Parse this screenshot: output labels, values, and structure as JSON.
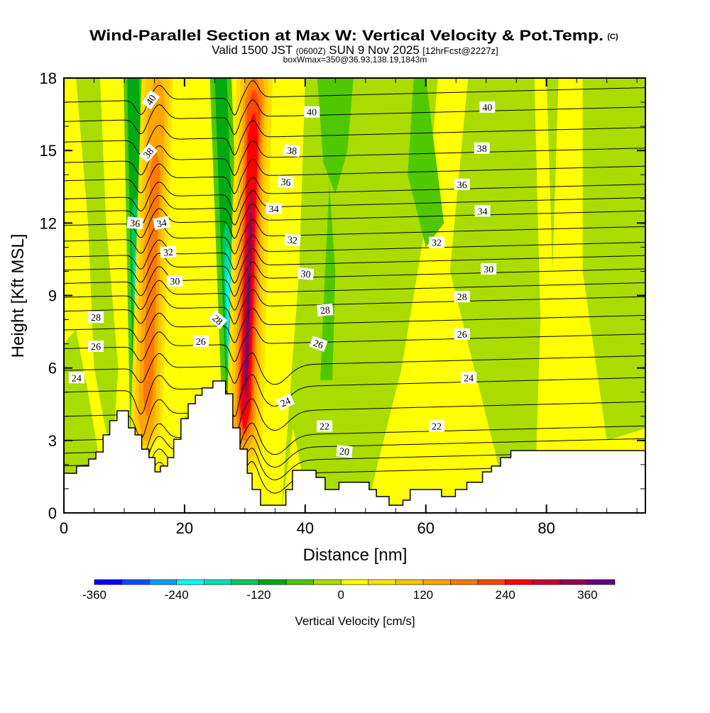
{
  "chart_data": {
    "type": "heatmap",
    "title": "Wind-Parallel Section at Max W: Vertical Velocity & Pot.Temp.",
    "copyright": "(C)",
    "subtitle": {
      "valid": "Valid 1500 JST",
      "utc": "(0600Z)",
      "date": "SUN 9 Nov 2025",
      "forecast": "[12hrFcst@2227z]"
    },
    "box_info": "boxWmax=350@36.93,138.19,1843m",
    "xlabel": "Distance [nm]",
    "ylabel": "Height [Kft MSL]",
    "xlim": [
      0,
      96.4
    ],
    "ylim": [
      0,
      18
    ],
    "xticks": [
      "0",
      "20",
      "40",
      "60",
      "80"
    ],
    "yticks": [
      "0",
      "3",
      "6",
      "9",
      "12",
      "15",
      "18"
    ],
    "colorbar": {
      "label": "Vertical Velocity [cm/s]",
      "ticks": [
        "-360",
        "-240",
        "-120",
        "0",
        "120",
        "240",
        "360"
      ],
      "tick_values": [
        -360,
        -240,
        -120,
        0,
        120,
        240,
        360
      ],
      "bin_start": -360,
      "bin_step": 40,
      "colors": [
        "#0000ff",
        "#0050ff",
        "#00a0ff",
        "#00ffff",
        "#00e0b0",
        "#00c864",
        "#00aa14",
        "#50c800",
        "#aadc00",
        "#ffff00",
        "#ffe000",
        "#ffc800",
        "#ffa500",
        "#ff7800",
        "#ff4600",
        "#ff0000",
        "#c80032",
        "#960050",
        "#640082"
      ]
    },
    "contours": {
      "variable": "Potential Temperature",
      "levels_min": 19,
      "levels_max": 41,
      "levels_step": 1,
      "reference_heights": {
        "20": 2.55,
        "22": 3.6,
        "24": 5.6,
        "26": 7.4,
        "28": 8.95,
        "30": 10.1,
        "32": 11.2,
        "34": 12.5,
        "36": 13.6,
        "38": 15.1,
        "40": 16.8
      },
      "labels": [
        {
          "text": "40",
          "x": 14.4,
          "z": 17.1,
          "rot": -55
        },
        {
          "text": "40",
          "x": 41.1,
          "z": 16.6,
          "rot": 0
        },
        {
          "text": "40",
          "x": 70.2,
          "z": 16.8,
          "rot": 0
        },
        {
          "text": "38",
          "x": 14.0,
          "z": 14.9,
          "rot": -50
        },
        {
          "text": "38",
          "x": 37.8,
          "z": 15.0,
          "rot": 5
        },
        {
          "text": "38",
          "x": 69.3,
          "z": 15.1,
          "rot": 0
        },
        {
          "text": "36",
          "x": 11.8,
          "z": 12.0,
          "rot": 5
        },
        {
          "text": "34",
          "x": 16.2,
          "z": 12.0,
          "rot": -10
        },
        {
          "text": "36",
          "x": 36.8,
          "z": 13.7,
          "rot": 5
        },
        {
          "text": "36",
          "x": 66.0,
          "z": 13.6,
          "rot": 0
        },
        {
          "text": "34",
          "x": 34.8,
          "z": 12.6,
          "rot": 0
        },
        {
          "text": "34",
          "x": 69.4,
          "z": 12.5,
          "rot": 0
        },
        {
          "text": "32",
          "x": 17.3,
          "z": 10.8,
          "rot": -5
        },
        {
          "text": "32",
          "x": 37.9,
          "z": 11.3,
          "rot": 5
        },
        {
          "text": "32",
          "x": 61.8,
          "z": 11.2,
          "rot": 0
        },
        {
          "text": "30",
          "x": 18.4,
          "z": 9.6,
          "rot": 0
        },
        {
          "text": "30",
          "x": 40.1,
          "z": 9.9,
          "rot": 5
        },
        {
          "text": "30",
          "x": 70.4,
          "z": 10.1,
          "rot": 0
        },
        {
          "text": "28",
          "x": 5.3,
          "z": 8.1,
          "rot": 0
        },
        {
          "text": "28",
          "x": 25.5,
          "z": 8.0,
          "rot": 40
        },
        {
          "text": "28",
          "x": 43.3,
          "z": 8.4,
          "rot": -5
        },
        {
          "text": "28",
          "x": 66.0,
          "z": 8.95,
          "rot": 0
        },
        {
          "text": "26",
          "x": 5.3,
          "z": 6.9,
          "rot": 0
        },
        {
          "text": "26",
          "x": 22.7,
          "z": 7.1,
          "rot": 0
        },
        {
          "text": "26",
          "x": 42.2,
          "z": 7.0,
          "rot": 20
        },
        {
          "text": "26",
          "x": 66.0,
          "z": 7.4,
          "rot": 0
        },
        {
          "text": "24",
          "x": 2.1,
          "z": 5.6,
          "rot": 0
        },
        {
          "text": "24",
          "x": 36.7,
          "z": 4.6,
          "rot": -25
        },
        {
          "text": "24",
          "x": 67.1,
          "z": 5.6,
          "rot": 0
        },
        {
          "text": "22",
          "x": 43.2,
          "z": 3.6,
          "rot": 0
        },
        {
          "text": "22",
          "x": 61.8,
          "z": 3.6,
          "rot": 0
        },
        {
          "text": "20",
          "x": 46.5,
          "z": 2.55,
          "rot": 5
        }
      ]
    },
    "terrain": {
      "x": [
        0,
        2.1,
        4.1,
        5.3,
        6.5,
        7.6,
        8.8,
        10.7,
        11.8,
        12.9,
        14.1,
        15.1,
        16.0,
        17.2,
        18.2,
        19.4,
        20.6,
        21.8,
        22.9,
        24.7,
        26.8,
        28.0,
        29.2,
        30.4,
        31.2,
        32.6,
        36.8,
        37.9,
        41.8,
        43.3,
        45.6,
        50.6,
        51.8,
        53.9,
        56.2,
        57.4,
        62.6,
        64.9,
        66.8,
        69.4,
        70.9,
        72.4,
        74.1
      ],
      "z": [
        1.64,
        1.94,
        2.23,
        2.52,
        3.23,
        3.82,
        4.23,
        3.52,
        3.23,
        2.64,
        2.29,
        1.7,
        1.94,
        2.29,
        3.05,
        3.9,
        4.52,
        4.87,
        5.17,
        5.46,
        4.93,
        3.52,
        2.64,
        1.64,
        0.97,
        0.32,
        0.97,
        1.76,
        1.47,
        0.97,
        1.27,
        0.97,
        0.68,
        0.32,
        0.53,
        0.97,
        0.68,
        0.97,
        1.27,
        1.7,
        1.94,
        2.29,
        2.58
      ]
    }
  }
}
